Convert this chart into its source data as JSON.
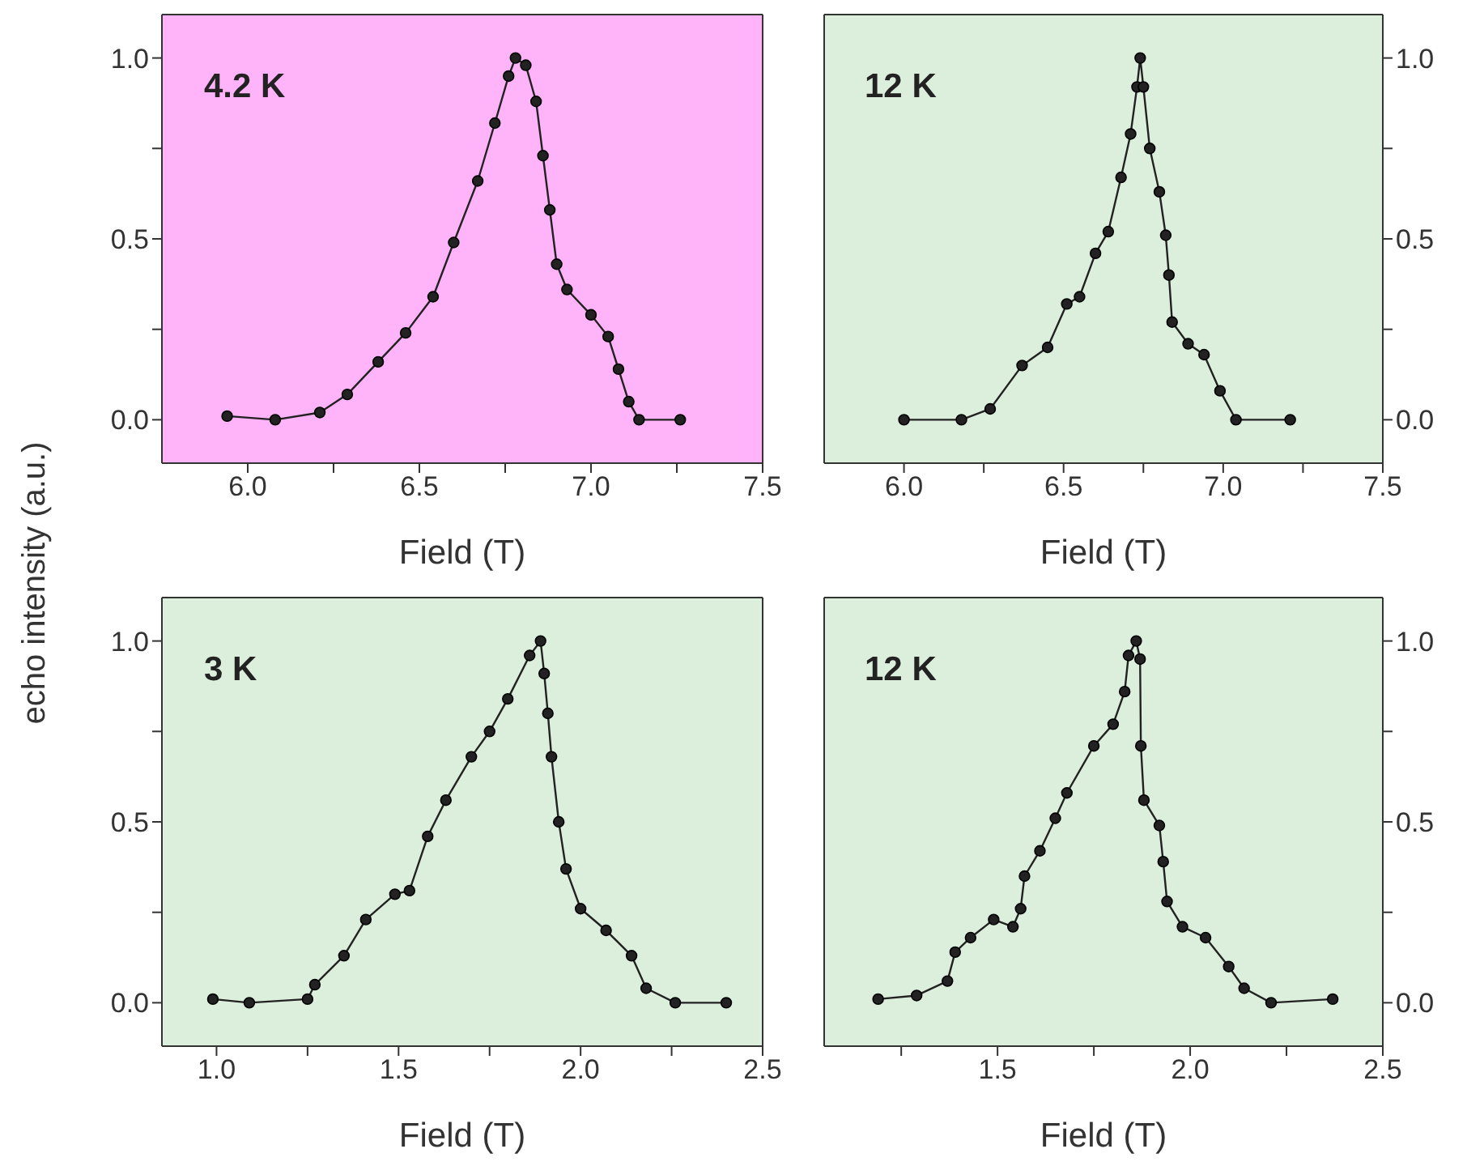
{
  "chart_data": [
    {
      "type": "line",
      "marker": "circle",
      "line_style": "solid",
      "grid": false,
      "xlabel": "Field (T)",
      "ylabel": "echo intensity (a.u.)",
      "annotations": [
        "4.2 K"
      ],
      "xlim": [
        5.75,
        7.5
      ],
      "xticks": [
        {
          "value": 6.0,
          "label": "6.0"
        },
        {
          "value": 6.25,
          "label": null
        },
        {
          "value": 6.5,
          "label": "6.5"
        },
        {
          "value": 6.75,
          "label": null
        },
        {
          "value": 7.0,
          "label": "7.0"
        },
        {
          "value": 7.25,
          "label": null
        },
        {
          "value": 7.5,
          "label": "7.5"
        }
      ],
      "ylim": [
        -0.12,
        1.12
      ],
      "yticks": [
        {
          "value": 0.0,
          "label": "0.0"
        },
        {
          "value": 0.25,
          "label": null
        },
        {
          "value": 0.5,
          "label": "0.5"
        },
        {
          "value": 0.75,
          "label": null
        },
        {
          "value": 1.0,
          "label": "1.0"
        }
      ],
      "x": [
        5.94,
        6.08,
        6.21,
        6.29,
        6.38,
        6.46,
        6.54,
        6.6,
        6.67,
        6.72,
        6.76,
        6.78,
        6.81,
        6.84,
        6.86,
        6.88,
        6.9,
        6.93,
        7.0,
        7.05,
        7.08,
        7.11,
        7.14,
        7.26
      ],
      "series": [
        {
          "color": "#222222",
          "values": [
            0.01,
            0.0,
            0.02,
            0.07,
            0.16,
            0.24,
            0.34,
            0.49,
            0.66,
            0.82,
            0.95,
            1.0,
            0.98,
            0.88,
            0.73,
            0.58,
            0.43,
            0.36,
            0.29,
            0.23,
            0.14,
            0.05,
            0.0,
            0.0
          ]
        }
      ]
    },
    {
      "type": "line",
      "marker": "circle",
      "line_style": "solid",
      "grid": false,
      "xlabel": "Field (T)",
      "annotations": [
        "12 K"
      ],
      "xlim": [
        5.75,
        7.5
      ],
      "xticks": [
        {
          "value": 6.0,
          "label": "6.0"
        },
        {
          "value": 6.25,
          "label": null
        },
        {
          "value": 6.5,
          "label": "6.5"
        },
        {
          "value": 6.75,
          "label": null
        },
        {
          "value": 7.0,
          "label": "7.0"
        },
        {
          "value": 7.25,
          "label": null
        },
        {
          "value": 7.5,
          "label": "7.5"
        }
      ],
      "y2lim": [
        -0.12,
        1.12
      ],
      "y2ticks": [
        {
          "value": 0.0,
          "label": "0.0"
        },
        {
          "value": 0.25,
          "label": null
        },
        {
          "value": 0.5,
          "label": "0.5"
        },
        {
          "value": 0.75,
          "label": null
        },
        {
          "value": 1.0,
          "label": "1.0"
        }
      ],
      "x": [
        6.0,
        6.18,
        6.27,
        6.37,
        6.45,
        6.51,
        6.55,
        6.6,
        6.64,
        6.68,
        6.71,
        6.73,
        6.74,
        6.75,
        6.77,
        6.8,
        6.82,
        6.83,
        6.84,
        6.89,
        6.94,
        6.99,
        7.04,
        7.21
      ],
      "series": [
        {
          "color": "#222222",
          "axis": "y2",
          "values": [
            0.0,
            0.0,
            0.03,
            0.15,
            0.2,
            0.32,
            0.34,
            0.46,
            0.52,
            0.67,
            0.79,
            0.92,
            1.0,
            0.92,
            0.75,
            0.63,
            0.51,
            0.4,
            0.27,
            0.21,
            0.18,
            0.08,
            0.0,
            0.0
          ]
        }
      ]
    },
    {
      "type": "line",
      "marker": "circle",
      "line_style": "solid",
      "grid": false,
      "xlabel": "Field (T)",
      "annotations": [
        "3 K"
      ],
      "xlim": [
        0.85,
        2.5
      ],
      "xticks": [
        {
          "value": 1.0,
          "label": "1.0"
        },
        {
          "value": 1.25,
          "label": null
        },
        {
          "value": 1.5,
          "label": "1.5"
        },
        {
          "value": 1.75,
          "label": null
        },
        {
          "value": 2.0,
          "label": "2.0"
        },
        {
          "value": 2.25,
          "label": null
        },
        {
          "value": 2.5,
          "label": "2.5"
        }
      ],
      "ylim": [
        -0.12,
        1.12
      ],
      "yticks": [
        {
          "value": 0.0,
          "label": "0.0"
        },
        {
          "value": 0.25,
          "label": null
        },
        {
          "value": 0.5,
          "label": "0.5"
        },
        {
          "value": 0.75,
          "label": null
        },
        {
          "value": 1.0,
          "label": "1.0"
        }
      ],
      "x": [
        0.99,
        1.09,
        1.25,
        1.27,
        1.35,
        1.41,
        1.49,
        1.53,
        1.58,
        1.63,
        1.7,
        1.75,
        1.8,
        1.86,
        1.89,
        1.9,
        1.91,
        1.92,
        1.94,
        1.96,
        2.0,
        2.07,
        2.14,
        2.18,
        2.26,
        2.4
      ],
      "series": [
        {
          "color": "#222222",
          "values": [
            0.01,
            0.0,
            0.01,
            0.05,
            0.13,
            0.23,
            0.3,
            0.31,
            0.46,
            0.56,
            0.68,
            0.75,
            0.84,
            0.96,
            1.0,
            0.91,
            0.8,
            0.68,
            0.5,
            0.37,
            0.26,
            0.2,
            0.13,
            0.04,
            0.0,
            0.0
          ]
        }
      ]
    },
    {
      "type": "line",
      "marker": "circle",
      "line_style": "solid",
      "grid": false,
      "xlabel": "Field (T)",
      "annotations": [
        "12 K"
      ],
      "xlim": [
        1.05,
        2.5
      ],
      "xticks": [
        {
          "value": 1.25,
          "label": null
        },
        {
          "value": 1.5,
          "label": "1.5"
        },
        {
          "value": 1.75,
          "label": null
        },
        {
          "value": 2.0,
          "label": "2.0"
        },
        {
          "value": 2.25,
          "label": null
        },
        {
          "value": 2.5,
          "label": "2.5"
        }
      ],
      "y2lim": [
        -0.12,
        1.12
      ],
      "y2ticks": [
        {
          "value": 0.0,
          "label": "0.0"
        },
        {
          "value": 0.25,
          "label": null
        },
        {
          "value": 0.5,
          "label": "0.5"
        },
        {
          "value": 0.75,
          "label": null
        },
        {
          "value": 1.0,
          "label": "1.0"
        }
      ],
      "x": [
        1.19,
        1.29,
        1.37,
        1.39,
        1.43,
        1.49,
        1.54,
        1.56,
        1.57,
        1.61,
        1.65,
        1.68,
        1.75,
        1.8,
        1.83,
        1.84,
        1.86,
        1.87,
        1.872,
        1.88,
        1.92,
        1.93,
        1.94,
        1.98,
        2.04,
        2.1,
        2.14,
        2.21,
        2.37
      ],
      "series": [
        {
          "color": "#222222",
          "axis": "y2",
          "values": [
            0.01,
            0.02,
            0.06,
            0.14,
            0.18,
            0.23,
            0.21,
            0.26,
            0.35,
            0.42,
            0.51,
            0.58,
            0.71,
            0.77,
            0.86,
            0.96,
            1.0,
            0.95,
            0.71,
            0.56,
            0.49,
            0.39,
            0.28,
            0.21,
            0.18,
            0.1,
            0.04,
            0.0,
            0.01
          ]
        }
      ]
    }
  ]
}
